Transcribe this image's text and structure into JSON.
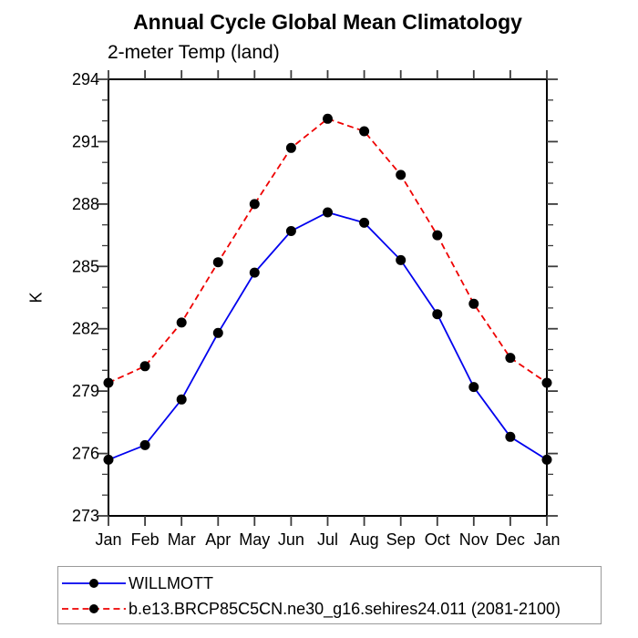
{
  "chart_data": {
    "type": "line",
    "title": "Annual Cycle Global Mean Climatology",
    "subtitle": "2-meter Temp (land)",
    "ylabel": "K",
    "ylim": [
      273,
      294
    ],
    "ytick_major_step": 3,
    "ytick_minor_step": 1,
    "ytick_labels": [
      "273",
      "276",
      "279",
      "282",
      "285",
      "288",
      "291",
      "294"
    ],
    "grid": false,
    "legend_position": "bottom-left",
    "categories": [
      "Jan",
      "Feb",
      "Mar",
      "Apr",
      "May",
      "Jun",
      "Jul",
      "Aug",
      "Sep",
      "Oct",
      "Nov",
      "Dec",
      "Jan"
    ],
    "series": [
      {
        "name": "WILLMOTT",
        "color": "#0000ee",
        "line_style": "solid",
        "marker": "filled-circle",
        "marker_color": "#000000",
        "values": [
          275.7,
          276.4,
          278.6,
          281.8,
          284.7,
          286.7,
          287.6,
          287.1,
          285.3,
          282.7,
          279.2,
          276.8,
          275.7
        ]
      },
      {
        "name": "b.e13.BRCP85C5CN.ne30_g16.sehires24.011 (2081-2100)",
        "color": "#ee0000",
        "line_style": "dashed",
        "marker": "filled-circle",
        "marker_color": "#000000",
        "values": [
          279.4,
          280.2,
          282.3,
          285.2,
          288.0,
          290.7,
          292.1,
          291.5,
          289.4,
          286.5,
          283.2,
          280.6,
          279.4
        ]
      }
    ]
  }
}
